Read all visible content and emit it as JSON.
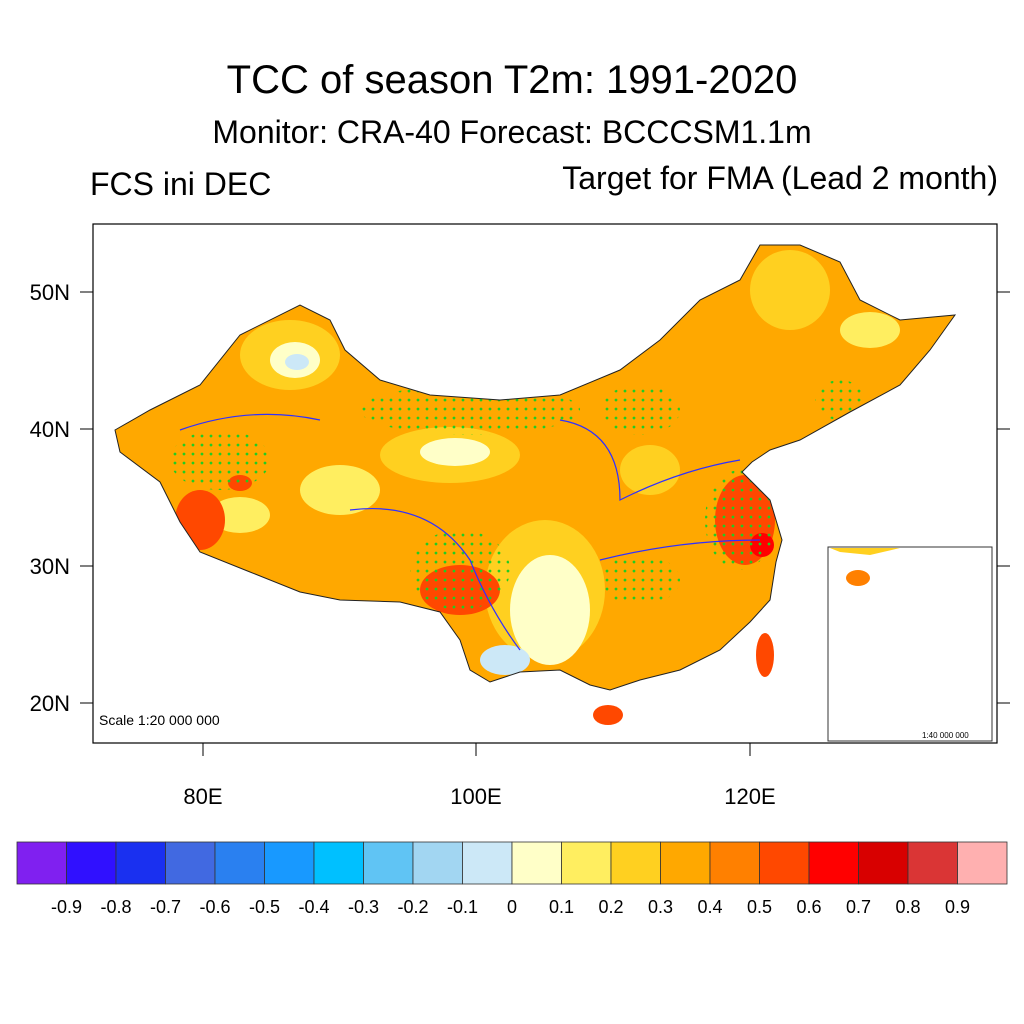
{
  "title": "TCC of season T2m: 1991-2020",
  "subtitle": "Monitor: CRA-40   Forecast: BCCCSM1.1m",
  "left_label": "FCS ini DEC",
  "right_label": "Target for FMA (Lead 2 month)",
  "map": {
    "lat_labels": [
      "50N",
      "40N",
      "30N",
      "20N"
    ],
    "lon_labels": [
      "80E",
      "100E",
      "120E"
    ],
    "lon_range": [
      72,
      138
    ],
    "lat_range": [
      17,
      55
    ],
    "scale_label": "Scale 1:20 000 000",
    "inset_scale_label": "1:40 000 000",
    "stipple_color": "#22CC22"
  },
  "colorbar": {
    "labels": [
      "-0.9",
      "-0.8",
      "-0.7",
      "-0.6",
      "-0.5",
      "-0.4",
      "-0.3",
      "-0.2",
      "-0.1",
      "0",
      "0.1",
      "0.2",
      "0.3",
      "0.4",
      "0.5",
      "0.6",
      "0.7",
      "0.8",
      "0.9"
    ],
    "colors": [
      "#8020F0",
      "#3010FF",
      "#1A30F0",
      "#4169E1",
      "#2A80F0",
      "#1899FF",
      "#00C0FF",
      "#60C4F4",
      "#A2D6F2",
      "#CCE8F7",
      "#FFFFC8",
      "#FFEE60",
      "#FFD020",
      "#FFA800",
      "#FF8000",
      "#FF4800",
      "#FF0000",
      "#D80000",
      "#DA3535",
      "#FFB0B0"
    ]
  }
}
